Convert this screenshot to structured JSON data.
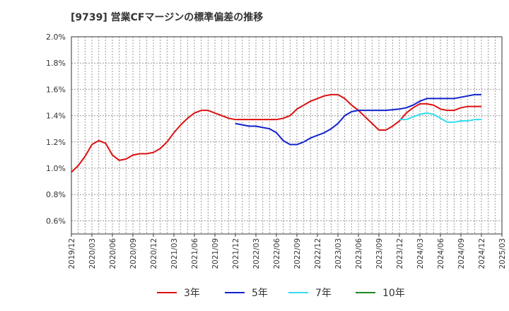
{
  "title": "[9739]  営業CFマージンの標準偏差の推移",
  "colors": {
    "series_3y": "#dd1111",
    "series_5y": "#1122cc",
    "series_7y": "#33ddee",
    "series_10y": "#228822",
    "grid": "#999999",
    "axis": "#333333"
  },
  "chart_data": {
    "type": "line",
    "title": "[9739]  営業CFマージンの標準偏差の推移",
    "xlabel": "",
    "ylabel": "",
    "ylim": [
      0.5,
      2.0
    ],
    "yticks": [
      0.6,
      0.8,
      1.0,
      1.2,
      1.4,
      1.6,
      1.8,
      2.0
    ],
    "ytick_labels": [
      "0.6%",
      "0.8%",
      "1.0%",
      "1.2%",
      "1.4%",
      "1.6%",
      "1.8%",
      "2.0%"
    ],
    "xlim": [
      "2019/12",
      "2025/03"
    ],
    "xtick_labels": [
      "2019/12",
      "2020/03",
      "2020/06",
      "2020/09",
      "2020/12",
      "2021/03",
      "2021/06",
      "2021/09",
      "2021/12",
      "2022/03",
      "2022/06",
      "2022/09",
      "2022/12",
      "2023/03",
      "2023/06",
      "2023/09",
      "2023/12",
      "2024/03",
      "2024/06",
      "2024/09",
      "2024/12",
      "2025/03"
    ],
    "grid": true,
    "legend_position": "bottom",
    "series": [
      {
        "name": "3年",
        "color": "#dd1111",
        "x": [
          "2019/12",
          "2020/01",
          "2020/02",
          "2020/03",
          "2020/04",
          "2020/05",
          "2020/06",
          "2020/07",
          "2020/08",
          "2020/09",
          "2020/10",
          "2020/11",
          "2020/12",
          "2021/01",
          "2021/02",
          "2021/03",
          "2021/04",
          "2021/05",
          "2021/06",
          "2021/07",
          "2021/08",
          "2021/09",
          "2021/10",
          "2021/11",
          "2021/12",
          "2022/01",
          "2022/02",
          "2022/03",
          "2022/04",
          "2022/05",
          "2022/06",
          "2022/07",
          "2022/08",
          "2022/09",
          "2022/10",
          "2022/11",
          "2022/12",
          "2023/01",
          "2023/02",
          "2023/03",
          "2023/04",
          "2023/05",
          "2023/06",
          "2023/07",
          "2023/08",
          "2023/09",
          "2023/10",
          "2023/11",
          "2023/12",
          "2024/01",
          "2024/02",
          "2024/03",
          "2024/04",
          "2024/05",
          "2024/06",
          "2024/07",
          "2024/08",
          "2024/09",
          "2024/10",
          "2024/11",
          "2024/12"
        ],
        "values": [
          0.97,
          1.02,
          1.09,
          1.18,
          1.21,
          1.19,
          1.1,
          1.06,
          1.07,
          1.1,
          1.11,
          1.11,
          1.12,
          1.15,
          1.2,
          1.27,
          1.33,
          1.38,
          1.42,
          1.44,
          1.44,
          1.42,
          1.4,
          1.38,
          1.37,
          1.37,
          1.37,
          1.37,
          1.37,
          1.37,
          1.37,
          1.38,
          1.4,
          1.45,
          1.48,
          1.51,
          1.53,
          1.55,
          1.56,
          1.56,
          1.53,
          1.48,
          1.44,
          1.39,
          1.34,
          1.29,
          1.29,
          1.32,
          1.36,
          1.42,
          1.46,
          1.49,
          1.49,
          1.48,
          1.45,
          1.44,
          1.44,
          1.46,
          1.47,
          1.47,
          1.47
        ]
      },
      {
        "name": "5年",
        "color": "#1122cc",
        "x": [
          "2021/12",
          "2022/01",
          "2022/02",
          "2022/03",
          "2022/04",
          "2022/05",
          "2022/06",
          "2022/07",
          "2022/08",
          "2022/09",
          "2022/10",
          "2022/11",
          "2022/12",
          "2023/01",
          "2023/02",
          "2023/03",
          "2023/04",
          "2023/05",
          "2023/06",
          "2023/07",
          "2023/08",
          "2023/09",
          "2023/10",
          "2023/11",
          "2023/12",
          "2024/01",
          "2024/02",
          "2024/03",
          "2024/04",
          "2024/05",
          "2024/06",
          "2024/07",
          "2024/08",
          "2024/09",
          "2024/10",
          "2024/11",
          "2024/12"
        ],
        "values": [
          1.34,
          1.33,
          1.32,
          1.32,
          1.31,
          1.3,
          1.27,
          1.21,
          1.18,
          1.18,
          1.2,
          1.23,
          1.25,
          1.27,
          1.3,
          1.34,
          1.4,
          1.43,
          1.44,
          1.44,
          1.44,
          1.44,
          1.44,
          1.445,
          1.45,
          1.46,
          1.48,
          1.51,
          1.53,
          1.53,
          1.53,
          1.53,
          1.53,
          1.54,
          1.55,
          1.56,
          1.56
        ]
      },
      {
        "name": "7年",
        "color": "#33ddee",
        "x": [
          "2023/12",
          "2024/01",
          "2024/02",
          "2024/03",
          "2024/04",
          "2024/05",
          "2024/06",
          "2024/07",
          "2024/08",
          "2024/09",
          "2024/10",
          "2024/11",
          "2024/12"
        ],
        "values": [
          1.37,
          1.37,
          1.39,
          1.41,
          1.42,
          1.41,
          1.38,
          1.35,
          1.35,
          1.36,
          1.36,
          1.37,
          1.37
        ]
      },
      {
        "name": "10年",
        "color": "#228822",
        "x": [],
        "values": []
      }
    ]
  }
}
